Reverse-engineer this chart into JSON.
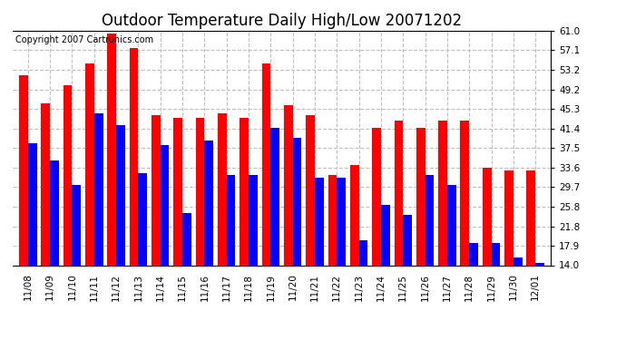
{
  "title": "Outdoor Temperature Daily High/Low 20071202",
  "copyright": "Copyright 2007 Cartronics.com",
  "categories": [
    "11/08",
    "11/09",
    "11/10",
    "11/11",
    "11/12",
    "11/13",
    "11/14",
    "11/15",
    "11/16",
    "11/17",
    "11/18",
    "11/19",
    "11/20",
    "11/21",
    "11/22",
    "11/23",
    "11/24",
    "11/25",
    "11/26",
    "11/27",
    "11/28",
    "11/29",
    "11/30",
    "12/01"
  ],
  "high_values": [
    52.0,
    46.5,
    50.0,
    54.5,
    60.5,
    57.5,
    44.0,
    43.5,
    43.5,
    44.5,
    43.5,
    54.5,
    46.0,
    44.0,
    32.0,
    34.0,
    41.5,
    43.0,
    41.5,
    43.0,
    43.0,
    33.5,
    33.0,
    33.0
  ],
  "low_values": [
    38.5,
    35.0,
    30.0,
    44.5,
    42.0,
    32.5,
    38.0,
    24.5,
    39.0,
    32.0,
    32.0,
    41.5,
    39.5,
    31.5,
    31.5,
    19.0,
    26.0,
    24.0,
    32.0,
    30.0,
    18.5,
    18.5,
    15.5,
    14.5
  ],
  "high_color": "#ff0000",
  "low_color": "#0000ff",
  "bg_color": "#ffffff",
  "grid_color": "#c0c0c0",
  "ylim_min": 14.0,
  "ylim_max": 61.0,
  "yticks": [
    14.0,
    17.9,
    21.8,
    25.8,
    29.7,
    33.6,
    37.5,
    41.4,
    45.3,
    49.2,
    53.2,
    57.1,
    61.0
  ],
  "title_fontsize": 12,
  "copyright_fontsize": 7,
  "tick_fontsize": 7.5,
  "bar_width": 0.4
}
